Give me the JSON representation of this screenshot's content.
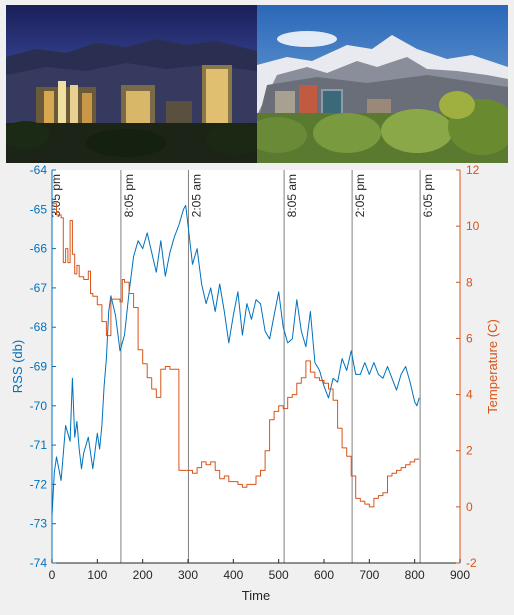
{
  "chart_data": {
    "type": "line",
    "xlabel": "Time",
    "ylabel_left": "RSS (db)",
    "ylabel_right": "Temperature (C)",
    "xlim": [
      0,
      900
    ],
    "ylim_left": [
      -74,
      -64
    ],
    "ylim_right": [
      -2,
      12
    ],
    "x_ticks": [
      0,
      100,
      200,
      300,
      400,
      500,
      600,
      700,
      800,
      900
    ],
    "y_ticks_left": [
      -74,
      -73,
      -72,
      -71,
      -70,
      -69,
      -68,
      -67,
      -66,
      -65,
      -64
    ],
    "y_ticks_right": [
      -2,
      0,
      2,
      4,
      6,
      8,
      10,
      12
    ],
    "colors": {
      "rss": "#0072BD",
      "temperature": "#D95319"
    },
    "time_markers": [
      {
        "x": 0,
        "label": "3:05 pm"
      },
      {
        "x": 152,
        "label": "8:05 pm"
      },
      {
        "x": 301,
        "label": "2:05 am"
      },
      {
        "x": 512,
        "label": "8:05 am"
      },
      {
        "x": 662,
        "label": "2:05 pm"
      },
      {
        "x": 812,
        "label": "6:05 pm"
      }
    ],
    "series": [
      {
        "name": "RSS (db)",
        "axis": "left",
        "x": [
          0,
          5,
          10,
          20,
          30,
          40,
          45,
          50,
          55,
          60,
          65,
          70,
          80,
          90,
          100,
          105,
          110,
          115,
          120,
          125,
          130,
          140,
          150,
          160,
          170,
          180,
          190,
          200,
          210,
          220,
          230,
          240,
          250,
          260,
          270,
          280,
          290,
          295,
          300,
          310,
          320,
          330,
          340,
          350,
          360,
          370,
          380,
          390,
          400,
          410,
          420,
          430,
          440,
          450,
          460,
          470,
          480,
          490,
          500,
          510,
          520,
          530,
          540,
          550,
          560,
          570,
          580,
          590,
          600,
          610,
          620,
          630,
          640,
          650,
          660,
          670,
          680,
          690,
          700,
          710,
          720,
          730,
          740,
          750,
          760,
          770,
          780,
          790,
          800,
          805,
          810
        ],
        "values": [
          -72.8,
          -71.7,
          -71.3,
          -71.9,
          -70.5,
          -70.9,
          -69.3,
          -70.8,
          -70.4,
          -71.1,
          -71.6,
          -71.2,
          -70.8,
          -71.6,
          -70.7,
          -71.1,
          -70.5,
          -69.5,
          -68.8,
          -67.6,
          -67.2,
          -67.7,
          -68.6,
          -68.2,
          -67.1,
          -66.2,
          -65.8,
          -66.0,
          -65.6,
          -66.1,
          -66.6,
          -65.8,
          -66.7,
          -66.1,
          -65.7,
          -65.4,
          -65.0,
          -64.9,
          -65.4,
          -66.4,
          -66.0,
          -66.9,
          -67.4,
          -67.0,
          -67.6,
          -66.9,
          -67.6,
          -68.4,
          -67.7,
          -67.1,
          -68.2,
          -67.4,
          -67.8,
          -67.3,
          -67.4,
          -68.1,
          -68.3,
          -67.7,
          -67.1,
          -68.0,
          -68.4,
          -68.3,
          -67.3,
          -68.1,
          -68.5,
          -67.6,
          -68.9,
          -69.1,
          -69.5,
          -69.8,
          -69.3,
          -69.4,
          -68.8,
          -69.1,
          -68.6,
          -69.2,
          -69.2,
          -68.9,
          -69.2,
          -68.9,
          -69.2,
          -69.3,
          -69.0,
          -69.3,
          -69.6,
          -69.2,
          -69.0,
          -69.4,
          -69.9,
          -70.0,
          -69.8
        ]
      },
      {
        "name": "Temperature (C)",
        "axis": "right",
        "x": [
          0,
          10,
          20,
          25,
          30,
          35,
          40,
          45,
          50,
          55,
          60,
          70,
          80,
          85,
          90,
          100,
          110,
          120,
          130,
          140,
          150,
          155,
          160,
          170,
          180,
          190,
          200,
          210,
          220,
          230,
          240,
          250,
          260,
          270,
          280,
          290,
          300,
          310,
          320,
          330,
          340,
          350,
          360,
          370,
          380,
          390,
          400,
          410,
          420,
          430,
          440,
          450,
          460,
          470,
          480,
          490,
          500,
          510,
          520,
          530,
          540,
          550,
          560,
          570,
          580,
          590,
          600,
          610,
          620,
          630,
          640,
          650,
          660,
          670,
          680,
          690,
          700,
          710,
          720,
          730,
          740,
          750,
          760,
          770,
          780,
          790,
          800,
          810
        ],
        "values": [
          10.8,
          10.4,
          10.3,
          8.7,
          9.2,
          8.7,
          10.2,
          9.0,
          8.3,
          8.6,
          8.2,
          8.1,
          8.4,
          7.6,
          7.5,
          7.2,
          6.6,
          6.1,
          7.4,
          7.4,
          7.3,
          8.1,
          8.0,
          7.6,
          7.1,
          5.6,
          5.1,
          4.6,
          4.2,
          3.9,
          4.9,
          5.0,
          4.9,
          4.9,
          1.3,
          1.3,
          1.3,
          1.2,
          1.4,
          1.6,
          1.5,
          1.6,
          1.3,
          1.0,
          1.1,
          0.9,
          0.9,
          0.8,
          0.7,
          0.8,
          0.8,
          1.1,
          1.3,
          2.0,
          3.1,
          3.4,
          3.6,
          3.5,
          3.9,
          4.0,
          4.4,
          4.6,
          5.2,
          4.8,
          4.6,
          4.5,
          4.4,
          4.2,
          3.8,
          2.8,
          2.1,
          1.8,
          1.1,
          0.3,
          0.2,
          0.1,
          0.0,
          0.3,
          0.4,
          0.5,
          1.1,
          1.2,
          1.3,
          1.4,
          1.5,
          1.6,
          1.7,
          1.7
        ]
      }
    ]
  }
}
